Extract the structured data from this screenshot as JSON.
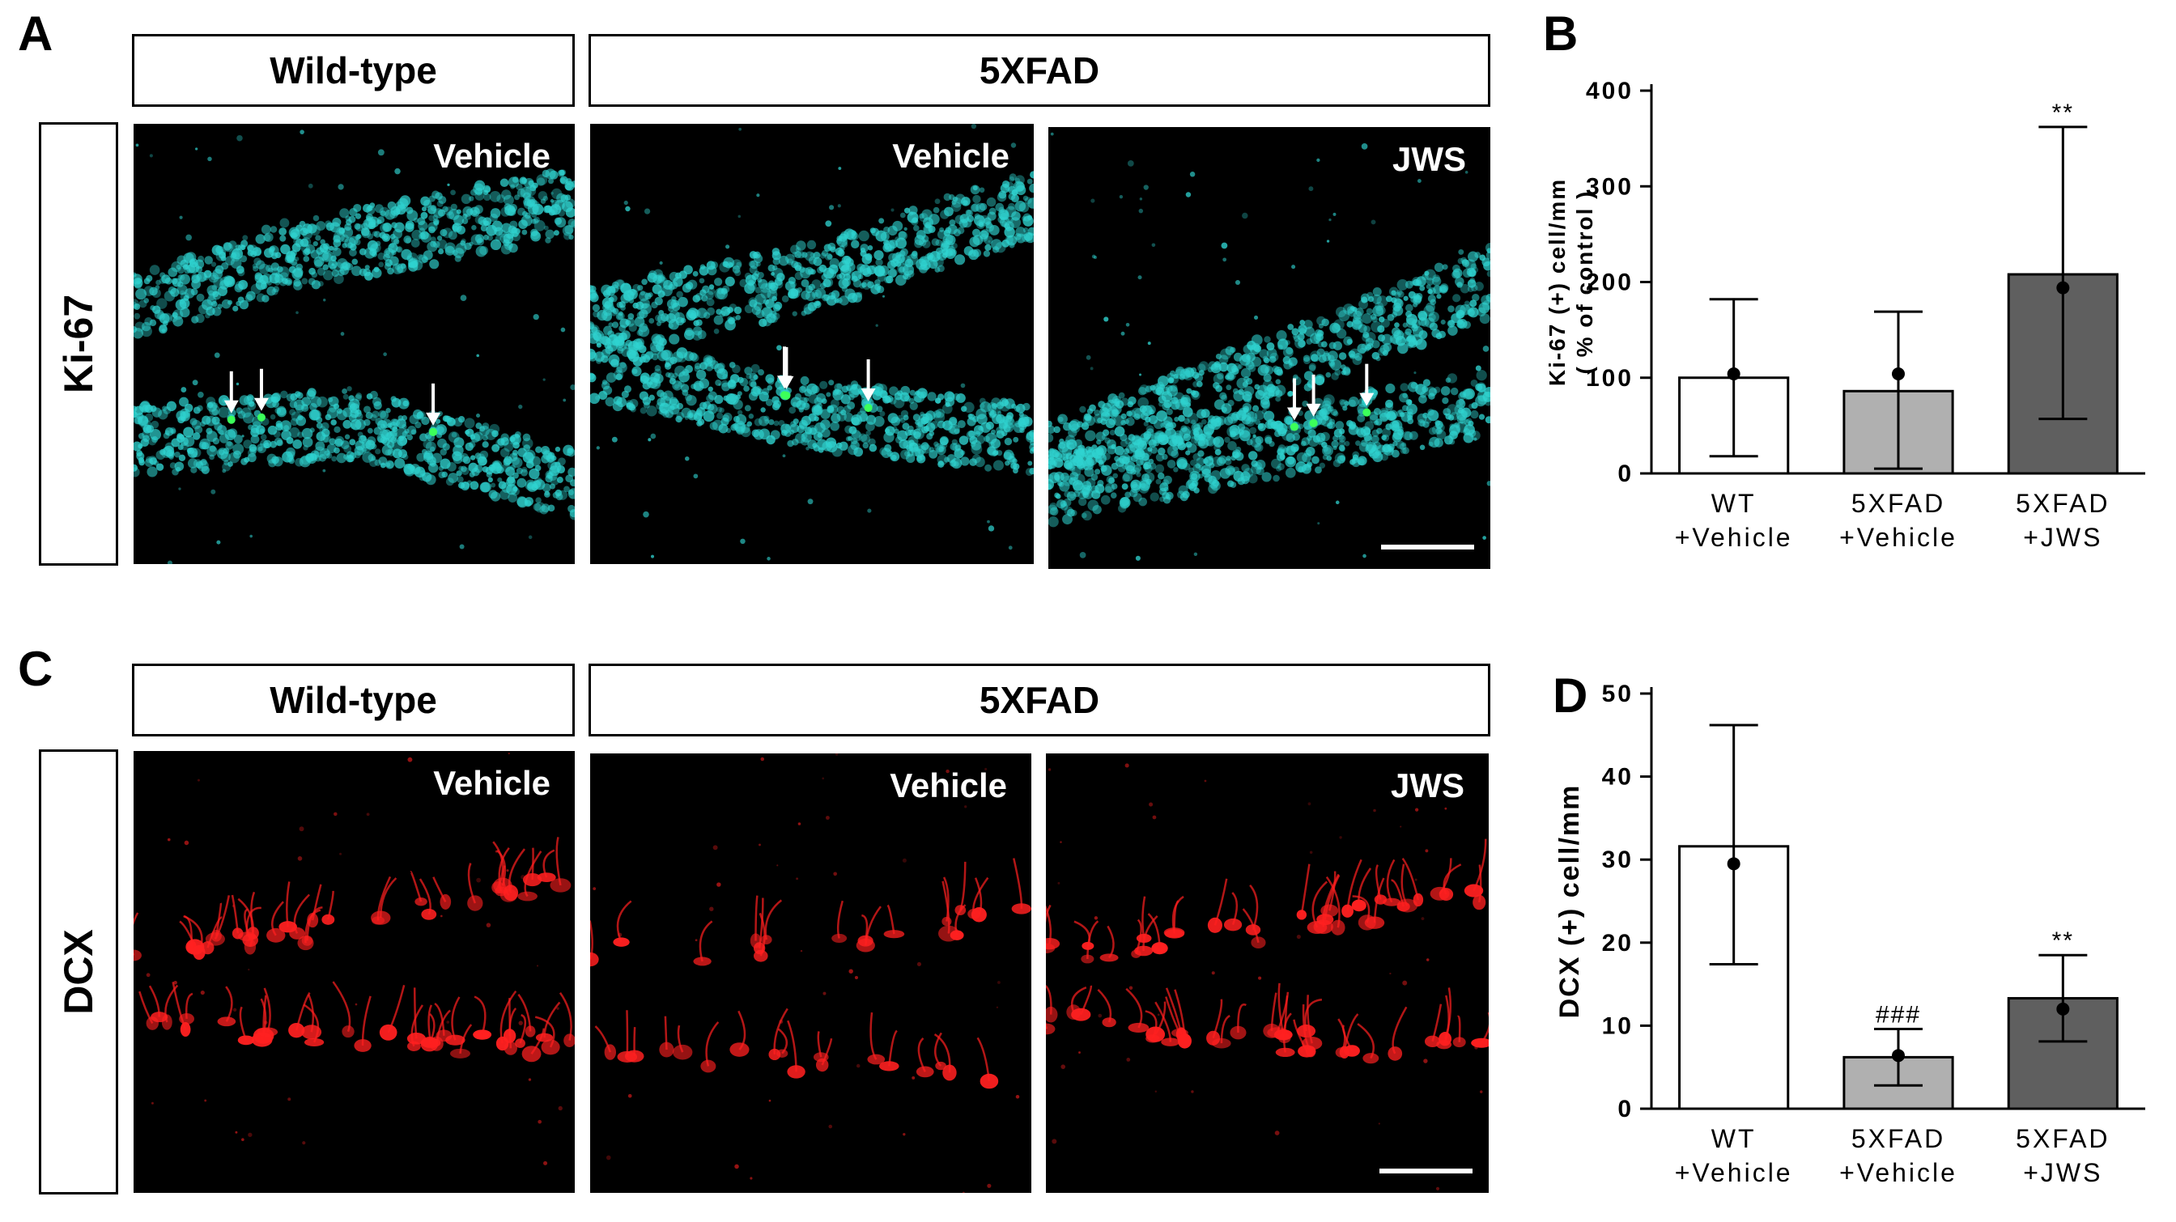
{
  "panels": {
    "A": "A",
    "B": "B",
    "C": "C",
    "D": "D"
  },
  "micrographs": {
    "group_wildtype": "Wild-type",
    "group_5xfad": "5XFAD",
    "row_ki67_label": "Ki-67",
    "row_dcx_label": "DCX",
    "col_labels": [
      "Vehicle",
      "Vehicle",
      "JWS"
    ],
    "ki67_color": "#2fd3d0",
    "ki67_positive_color": "#3cff5a",
    "dcx_color": "#ff2020"
  },
  "chart_data": [
    {
      "type": "bar",
      "categories": [
        [
          "WT",
          "+Vehicle"
        ],
        [
          "5XFAD",
          "+Vehicle"
        ],
        [
          "5XFAD",
          "+JWS"
        ]
      ],
      "values": [
        100,
        86,
        208
      ],
      "points": [
        104,
        104,
        194
      ],
      "error": [
        [
          18,
          182
        ],
        [
          5,
          169
        ],
        [
          57,
          362
        ]
      ],
      "bar_colors": [
        "#ffffff",
        "#b0b0b0",
        "#5f5f5f"
      ],
      "ylabel": "Ki-67 (+) cell/mm\n( % of control )",
      "ylim": [
        0,
        400
      ],
      "yticks": [
        0,
        100,
        200,
        300,
        400
      ],
      "annotations": [
        "",
        "",
        "**"
      ]
    },
    {
      "type": "bar",
      "categories": [
        [
          "WT",
          "+Vehicle"
        ],
        [
          "5XFAD",
          "+Vehicle"
        ],
        [
          "5XFAD",
          "+JWS"
        ]
      ],
      "values": [
        31.6,
        6.2,
        13.3
      ],
      "points": [
        29.5,
        6.4,
        12.0
      ],
      "error": [
        [
          17.4,
          46.2
        ],
        [
          2.8,
          9.6
        ],
        [
          8.1,
          18.5
        ]
      ],
      "bar_colors": [
        "#ffffff",
        "#b0b0b0",
        "#5f5f5f"
      ],
      "ylabel": "DCX (+) cell/mm",
      "ylim": [
        0,
        50
      ],
      "yticks": [
        0,
        10,
        20,
        30,
        40,
        50
      ],
      "annotations": [
        "",
        "###",
        "**"
      ]
    }
  ]
}
